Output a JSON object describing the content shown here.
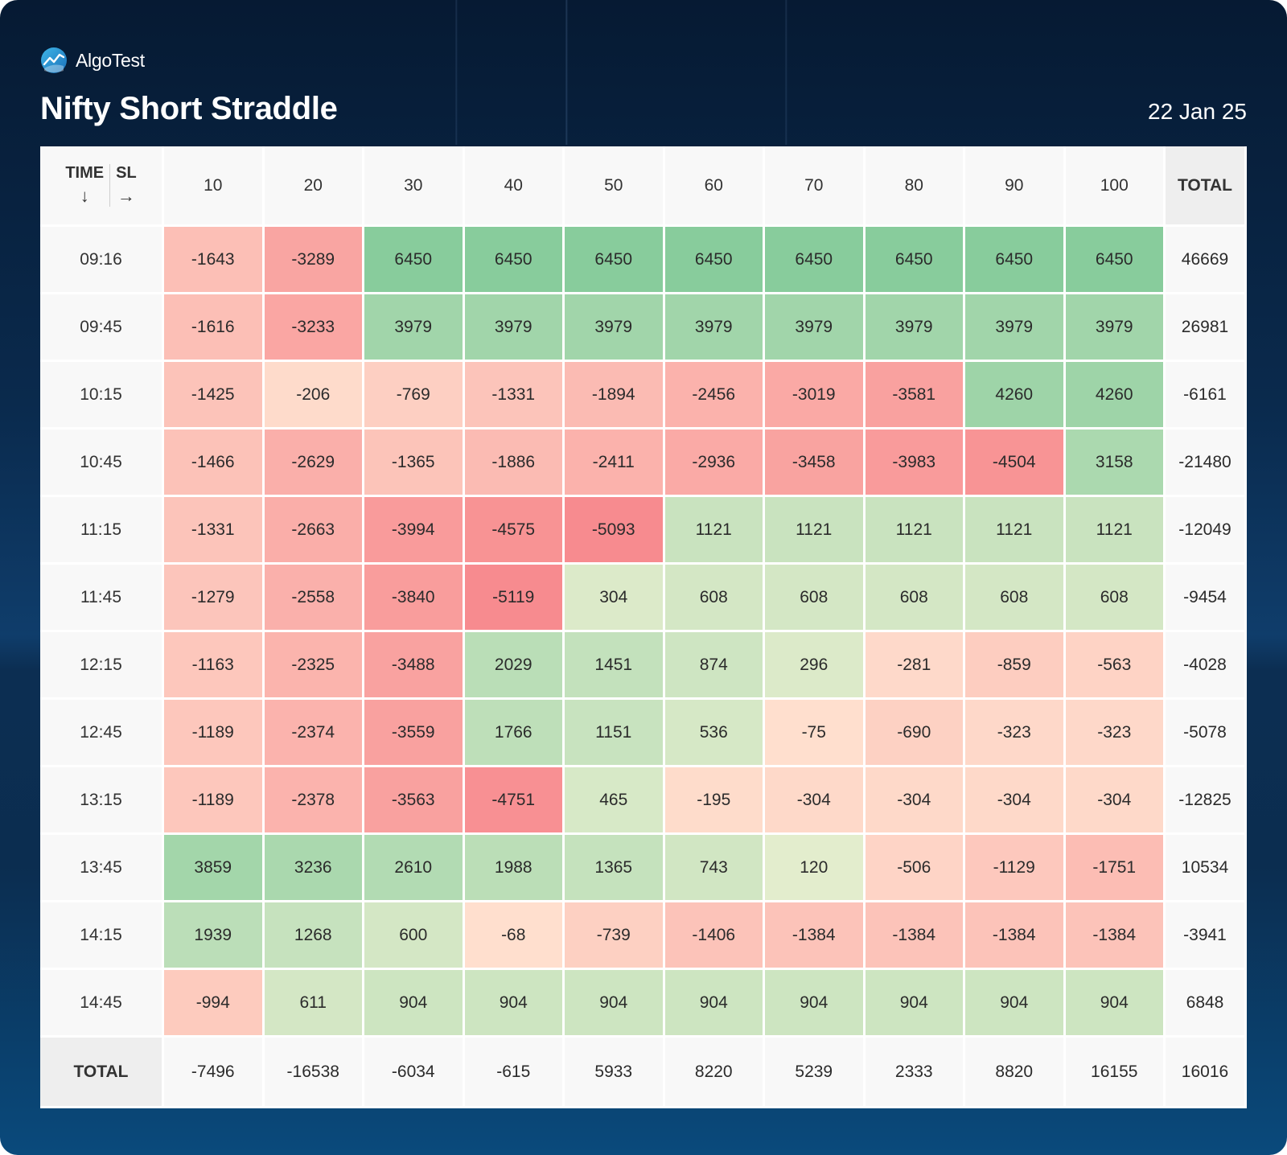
{
  "brand": {
    "name": "AlgoTest",
    "logo_icon": "algotest-logo-icon"
  },
  "header": {
    "title": "Nifty Short Straddle",
    "date": "22 Jan 25"
  },
  "chart_data": {
    "type": "heatmap",
    "title": "Nifty Short Straddle",
    "row_axis_label": "TIME",
    "row_axis_arrow": "↓",
    "col_axis_label": "SL",
    "col_axis_arrow": "→",
    "total_label": "TOTAL",
    "columns": [
      "10",
      "20",
      "30",
      "40",
      "50",
      "60",
      "70",
      "80",
      "90",
      "100"
    ],
    "rows": [
      "09:16",
      "09:45",
      "10:15",
      "10:45",
      "11:15",
      "11:45",
      "12:15",
      "12:45",
      "13:15",
      "13:45",
      "14:15",
      "14:45"
    ],
    "values": [
      [
        -1643,
        -3289,
        6450,
        6450,
        6450,
        6450,
        6450,
        6450,
        6450,
        6450
      ],
      [
        -1616,
        -3233,
        3979,
        3979,
        3979,
        3979,
        3979,
        3979,
        3979,
        3979
      ],
      [
        -1425,
        -206,
        -769,
        -1331,
        -1894,
        -2456,
        -3019,
        -3581,
        4260,
        4260
      ],
      [
        -1466,
        -2629,
        -1365,
        -1886,
        -2411,
        -2936,
        -3458,
        -3983,
        -4504,
        3158
      ],
      [
        -1331,
        -2663,
        -3994,
        -4575,
        -5093,
        1121,
        1121,
        1121,
        1121,
        1121
      ],
      [
        -1279,
        -2558,
        -3840,
        -5119,
        304,
        608,
        608,
        608,
        608,
        608
      ],
      [
        -1163,
        -2325,
        -3488,
        2029,
        1451,
        874,
        296,
        -281,
        -859,
        -563
      ],
      [
        -1189,
        -2374,
        -3559,
        1766,
        1151,
        536,
        -75,
        -690,
        -323,
        -323
      ],
      [
        -1189,
        -2378,
        -3563,
        -4751,
        465,
        -195,
        -304,
        -304,
        -304,
        -304
      ],
      [
        3859,
        3236,
        2610,
        1988,
        1365,
        743,
        120,
        -506,
        -1129,
        -1751
      ],
      [
        1939,
        1268,
        600,
        -68,
        -739,
        -1406,
        -1384,
        -1384,
        -1384,
        -1384
      ],
      [
        -994,
        611,
        904,
        904,
        904,
        904,
        904,
        904,
        904,
        904
      ]
    ],
    "row_totals": [
      46669,
      26981,
      -6161,
      -21480,
      -12049,
      -9454,
      -4028,
      -5078,
      -12825,
      10534,
      -3941,
      6848
    ],
    "column_totals": [
      -7496,
      -16538,
      -6034,
      -615,
      5933,
      8220,
      5239,
      2333,
      8820,
      16155
    ],
    "grand_total": 16016
  }
}
